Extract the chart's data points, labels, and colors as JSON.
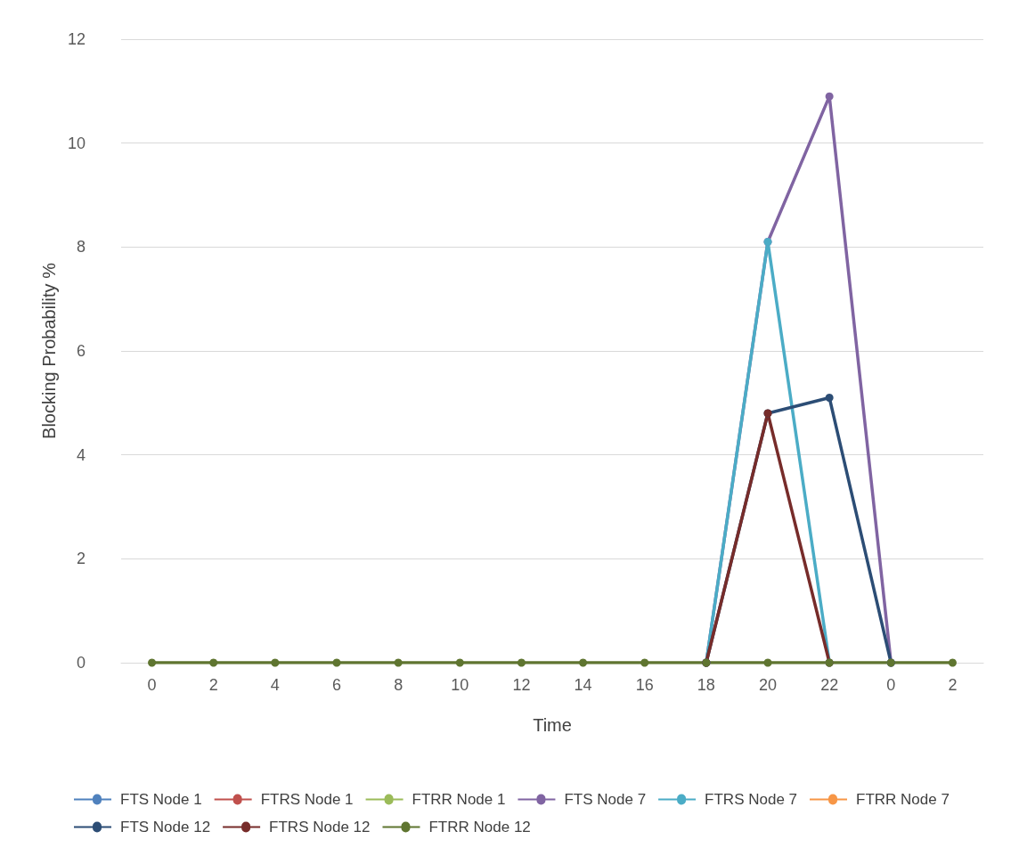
{
  "chart_data": {
    "type": "line",
    "xlabel": "Time",
    "ylabel": "Blocking Probability %",
    "categories": [
      "0",
      "2",
      "4",
      "6",
      "8",
      "10",
      "12",
      "14",
      "16",
      "18",
      "20",
      "22",
      "0",
      "2"
    ],
    "ylim": [
      0,
      12
    ],
    "yticks": [
      0,
      2,
      4,
      6,
      8,
      10,
      12
    ],
    "grid": "y",
    "legend": "bottom",
    "marker": "circle",
    "line_style": "solid",
    "series": [
      {
        "name": "FTS Node 1",
        "color": "#4f81bd",
        "values": [
          null,
          null,
          null,
          null,
          null,
          null,
          null,
          null,
          null,
          null,
          null,
          null,
          null,
          null
        ]
      },
      {
        "name": "FTRS Node 1",
        "color": "#c0504d",
        "values": [
          null,
          null,
          null,
          null,
          null,
          null,
          null,
          null,
          null,
          null,
          null,
          null,
          null,
          null
        ]
      },
      {
        "name": "FTRR Node 1",
        "color": "#9bbb59",
        "values": [
          null,
          null,
          null,
          null,
          null,
          null,
          null,
          null,
          null,
          null,
          null,
          null,
          null,
          null
        ]
      },
      {
        "name": "FTS Node 7",
        "color": "#8064a2",
        "values": [
          null,
          null,
          null,
          null,
          null,
          null,
          null,
          null,
          null,
          0,
          8.1,
          10.9,
          0,
          null
        ]
      },
      {
        "name": "FTRS Node 7",
        "color": "#4bacc6",
        "values": [
          null,
          null,
          null,
          null,
          null,
          null,
          null,
          null,
          null,
          0,
          8.1,
          0,
          null,
          null
        ]
      },
      {
        "name": "FTRR Node 7",
        "color": "#f79646",
        "values": [
          null,
          null,
          null,
          null,
          null,
          null,
          null,
          null,
          null,
          null,
          null,
          null,
          null,
          null
        ]
      },
      {
        "name": "FTS Node 12",
        "color": "#2c4d75",
        "values": [
          null,
          null,
          null,
          null,
          null,
          null,
          null,
          null,
          null,
          0,
          4.8,
          5.1,
          0,
          null
        ]
      },
      {
        "name": "FTRS Node 12",
        "color": "#772c2a",
        "values": [
          null,
          null,
          null,
          null,
          null,
          null,
          null,
          null,
          null,
          0,
          4.8,
          0,
          null,
          null
        ]
      },
      {
        "name": "FTRR Node 12",
        "color": "#5f7530",
        "values": [
          0,
          0,
          0,
          0,
          0,
          0,
          0,
          0,
          0,
          0,
          0,
          0,
          0,
          0
        ]
      }
    ]
  }
}
